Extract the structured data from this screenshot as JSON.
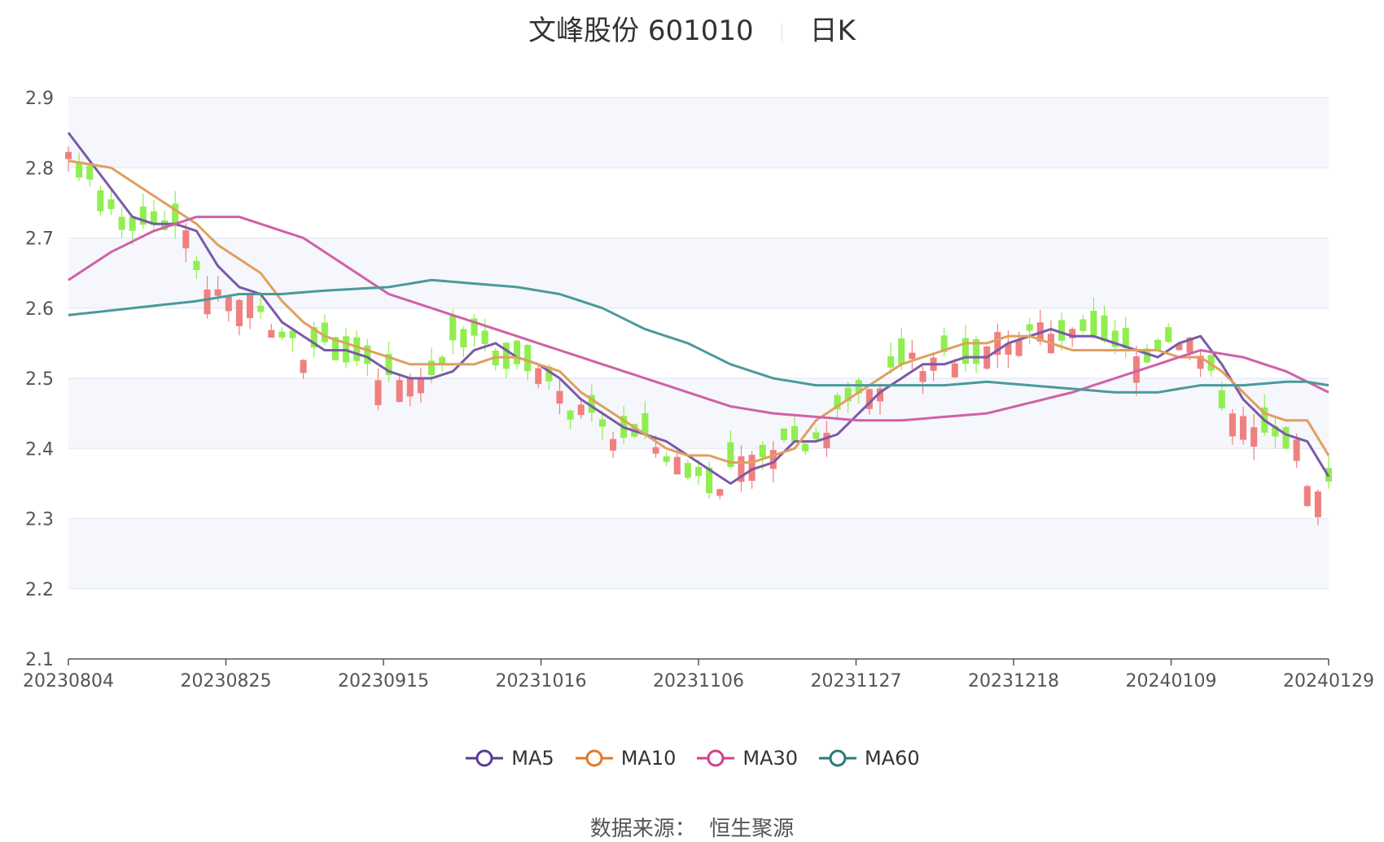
{
  "title": {
    "name": "文峰股份 601010",
    "period": "日K"
  },
  "source": {
    "label": "数据来源：",
    "value": "恒生聚源"
  },
  "colors": {
    "up": "#f08080",
    "down": "#90ee50",
    "ma5": "#7a5aa8",
    "ma10": "#e0a060",
    "ma30": "#d060a8",
    "ma60": "#4a9a9a"
  },
  "chart_data": {
    "type": "candlestick",
    "y_ticks": [
      "2.9",
      "2.8",
      "2.7",
      "2.6",
      "2.5",
      "2.4",
      "2.3",
      "2.2",
      "2.1"
    ],
    "ylim": [
      2.1,
      2.9
    ],
    "x_ticks": [
      "20230804",
      "20230825",
      "20230915",
      "20231016",
      "20231106",
      "20231127",
      "20231218",
      "20240109",
      "20240129"
    ],
    "candle_count": 119,
    "ma_series": [
      {
        "name": "MA5",
        "color": "#7a5aa8",
        "anchors": [
          [
            0,
            2.85
          ],
          [
            4,
            2.77
          ],
          [
            6,
            2.73
          ],
          [
            8,
            2.72
          ],
          [
            10,
            2.72
          ],
          [
            12,
            2.71
          ],
          [
            14,
            2.66
          ],
          [
            16,
            2.63
          ],
          [
            18,
            2.62
          ],
          [
            20,
            2.58
          ],
          [
            22,
            2.56
          ],
          [
            24,
            2.54
          ],
          [
            26,
            2.54
          ],
          [
            28,
            2.53
          ],
          [
            30,
            2.51
          ],
          [
            32,
            2.5
          ],
          [
            34,
            2.5
          ],
          [
            36,
            2.51
          ],
          [
            38,
            2.54
          ],
          [
            40,
            2.55
          ],
          [
            42,
            2.53
          ],
          [
            44,
            2.52
          ],
          [
            46,
            2.5
          ],
          [
            48,
            2.47
          ],
          [
            50,
            2.45
          ],
          [
            52,
            2.43
          ],
          [
            54,
            2.42
          ],
          [
            56,
            2.41
          ],
          [
            58,
            2.39
          ],
          [
            60,
            2.37
          ],
          [
            62,
            2.35
          ],
          [
            64,
            2.37
          ],
          [
            66,
            2.38
          ],
          [
            68,
            2.41
          ],
          [
            70,
            2.41
          ],
          [
            72,
            2.42
          ],
          [
            74,
            2.45
          ],
          [
            76,
            2.48
          ],
          [
            78,
            2.5
          ],
          [
            80,
            2.52
          ],
          [
            82,
            2.52
          ],
          [
            84,
            2.53
          ],
          [
            86,
            2.53
          ],
          [
            88,
            2.55
          ],
          [
            90,
            2.56
          ],
          [
            92,
            2.57
          ],
          [
            94,
            2.56
          ],
          [
            96,
            2.56
          ],
          [
            98,
            2.55
          ],
          [
            100,
            2.54
          ],
          [
            102,
            2.53
          ],
          [
            104,
            2.55
          ],
          [
            106,
            2.56
          ],
          [
            108,
            2.52
          ],
          [
            110,
            2.47
          ],
          [
            112,
            2.44
          ],
          [
            114,
            2.42
          ],
          [
            116,
            2.41
          ],
          [
            118,
            2.36
          ]
        ]
      },
      {
        "name": "MA10",
        "color": "#e0a060",
        "anchors": [
          [
            0,
            2.81
          ],
          [
            4,
            2.8
          ],
          [
            6,
            2.78
          ],
          [
            8,
            2.76
          ],
          [
            10,
            2.74
          ],
          [
            12,
            2.72
          ],
          [
            14,
            2.69
          ],
          [
            16,
            2.67
          ],
          [
            18,
            2.65
          ],
          [
            20,
            2.61
          ],
          [
            22,
            2.58
          ],
          [
            24,
            2.56
          ],
          [
            26,
            2.55
          ],
          [
            28,
            2.54
          ],
          [
            30,
            2.53
          ],
          [
            32,
            2.52
          ],
          [
            34,
            2.52
          ],
          [
            36,
            2.52
          ],
          [
            38,
            2.52
          ],
          [
            40,
            2.53
          ],
          [
            42,
            2.53
          ],
          [
            44,
            2.52
          ],
          [
            46,
            2.51
          ],
          [
            48,
            2.48
          ],
          [
            50,
            2.46
          ],
          [
            52,
            2.44
          ],
          [
            54,
            2.42
          ],
          [
            56,
            2.4
          ],
          [
            58,
            2.39
          ],
          [
            60,
            2.39
          ],
          [
            62,
            2.38
          ],
          [
            64,
            2.38
          ],
          [
            66,
            2.39
          ],
          [
            68,
            2.4
          ],
          [
            70,
            2.44
          ],
          [
            72,
            2.46
          ],
          [
            74,
            2.48
          ],
          [
            76,
            2.5
          ],
          [
            78,
            2.52
          ],
          [
            80,
            2.53
          ],
          [
            82,
            2.54
          ],
          [
            84,
            2.55
          ],
          [
            86,
            2.55
          ],
          [
            88,
            2.56
          ],
          [
            90,
            2.56
          ],
          [
            92,
            2.55
          ],
          [
            94,
            2.54
          ],
          [
            96,
            2.54
          ],
          [
            98,
            2.54
          ],
          [
            100,
            2.54
          ],
          [
            102,
            2.54
          ],
          [
            104,
            2.53
          ],
          [
            106,
            2.53
          ],
          [
            108,
            2.51
          ],
          [
            110,
            2.48
          ],
          [
            112,
            2.45
          ],
          [
            114,
            2.44
          ],
          [
            116,
            2.44
          ],
          [
            118,
            2.39
          ]
        ]
      },
      {
        "name": "MA30",
        "color": "#d060a8",
        "anchors": [
          [
            0,
            2.64
          ],
          [
            4,
            2.68
          ],
          [
            8,
            2.71
          ],
          [
            12,
            2.73
          ],
          [
            16,
            2.73
          ],
          [
            18,
            2.72
          ],
          [
            22,
            2.7
          ],
          [
            26,
            2.66
          ],
          [
            30,
            2.62
          ],
          [
            34,
            2.6
          ],
          [
            38,
            2.58
          ],
          [
            42,
            2.56
          ],
          [
            46,
            2.54
          ],
          [
            50,
            2.52
          ],
          [
            54,
            2.5
          ],
          [
            58,
            2.48
          ],
          [
            62,
            2.46
          ],
          [
            66,
            2.45
          ],
          [
            70,
            2.445
          ],
          [
            74,
            2.44
          ],
          [
            78,
            2.44
          ],
          [
            82,
            2.445
          ],
          [
            86,
            2.45
          ],
          [
            90,
            2.465
          ],
          [
            94,
            2.48
          ],
          [
            98,
            2.5
          ],
          [
            102,
            2.52
          ],
          [
            106,
            2.54
          ],
          [
            110,
            2.53
          ],
          [
            114,
            2.51
          ],
          [
            118,
            2.48
          ]
        ]
      },
      {
        "name": "MA60",
        "color": "#4a9a9a",
        "anchors": [
          [
            0,
            2.59
          ],
          [
            6,
            2.6
          ],
          [
            12,
            2.61
          ],
          [
            16,
            2.62
          ],
          [
            20,
            2.62
          ],
          [
            24,
            2.625
          ],
          [
            30,
            2.63
          ],
          [
            34,
            2.64
          ],
          [
            38,
            2.635
          ],
          [
            42,
            2.63
          ],
          [
            46,
            2.62
          ],
          [
            50,
            2.6
          ],
          [
            54,
            2.57
          ],
          [
            58,
            2.55
          ],
          [
            62,
            2.52
          ],
          [
            66,
            2.5
          ],
          [
            70,
            2.49
          ],
          [
            74,
            2.49
          ],
          [
            78,
            2.49
          ],
          [
            82,
            2.49
          ],
          [
            86,
            2.495
          ],
          [
            90,
            2.49
          ],
          [
            94,
            2.485
          ],
          [
            98,
            2.48
          ],
          [
            102,
            2.48
          ],
          [
            106,
            2.49
          ],
          [
            110,
            2.49
          ],
          [
            114,
            2.495
          ],
          [
            116,
            2.495
          ],
          [
            118,
            2.49
          ]
        ]
      }
    ],
    "legend": [
      {
        "name": "MA5",
        "color": "#5a3a98"
      },
      {
        "name": "MA10",
        "color": "#e07828"
      },
      {
        "name": "MA30",
        "color": "#d0408a"
      },
      {
        "name": "MA60",
        "color": "#2a7a7a"
      }
    ]
  }
}
